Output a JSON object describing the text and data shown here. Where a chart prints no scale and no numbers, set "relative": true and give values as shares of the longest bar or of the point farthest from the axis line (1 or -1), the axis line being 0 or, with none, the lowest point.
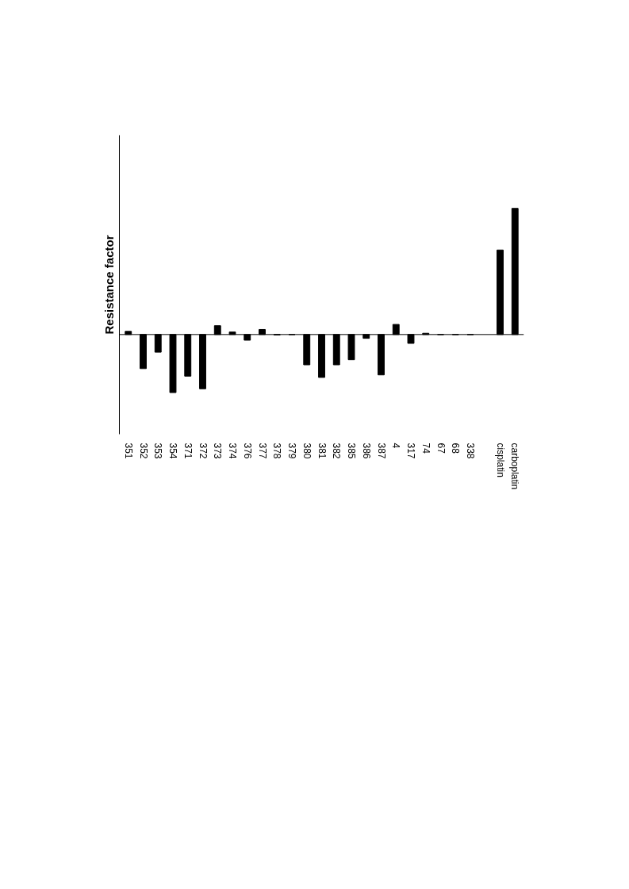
{
  "chart_data": {
    "type": "bar",
    "ylabel": "Resistance factor",
    "relative": true,
    "color": "#000000",
    "categories": [
      "351",
      "352",
      "353",
      "354",
      "371",
      "372",
      "373",
      "374",
      "376",
      "377",
      "378",
      "379",
      "380",
      "381",
      "382",
      "385",
      "386",
      "387",
      "4",
      "317",
      "74",
      "67",
      "68",
      "338",
      null,
      "cisplatin",
      "carboplatin"
    ],
    "values": [
      0.025,
      -0.27,
      -0.14,
      -0.46,
      -0.33,
      -0.43,
      0.07,
      0.02,
      -0.045,
      0.04,
      -0.003,
      0,
      -0.24,
      -0.34,
      -0.24,
      -0.2,
      -0.03,
      -0.32,
      0.08,
      -0.07,
      0.01,
      0,
      0,
      0,
      null,
      0.67,
      1
    ]
  }
}
